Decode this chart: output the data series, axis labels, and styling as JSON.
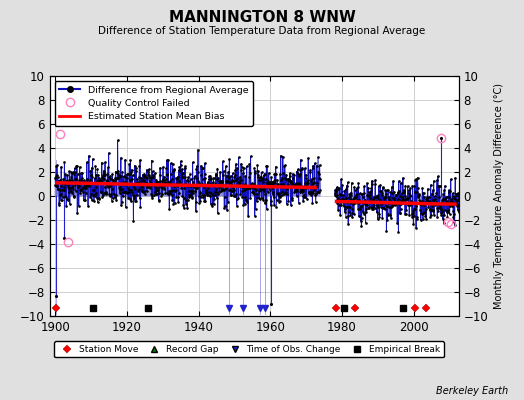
{
  "title": "MANNINGTON 8 WNW",
  "subtitle": "Difference of Station Temperature Data from Regional Average",
  "ylabel": "Monthly Temperature Anomaly Difference (°C)",
  "xlabel_years": [
    1900,
    1920,
    1940,
    1960,
    1980,
    2000
  ],
  "ylim": [
    -10,
    10
  ],
  "xlim": [
    1898.5,
    2012.5
  ],
  "bg_color": "#e0e0e0",
  "plot_bg_color": "#ffffff",
  "grid_color": "#c8c8c8",
  "seed": 42,
  "station_moves": [
    1900.3,
    1978.3,
    1983.5,
    2000.5,
    2003.5
  ],
  "record_gaps": [],
  "obs_changes": [
    1948.5,
    1952.5,
    1957.0,
    1958.5
  ],
  "empirical_breaks": [
    1910.5,
    1926.0,
    1980.5,
    1997.0
  ],
  "qc_failed_years": [
    1901.3,
    1903.5,
    2007.5,
    2009.5,
    2010.5
  ],
  "qc_failed_values": [
    5.2,
    -3.8,
    4.8,
    -2.2,
    -2.3
  ],
  "seg1_start": 1900,
  "seg1_end": 1973,
  "seg1_bias": 1.05,
  "seg1_trend": -0.003,
  "seg2_start": 1978,
  "seg2_end": 2012,
  "seg2_bias": -0.45,
  "seg2_trend": -0.004,
  "event_y": -9.3,
  "berkeley_earth_text": "Berkeley Earth",
  "spike_early_years": [
    1900.25,
    1902.5
  ],
  "spike_early_vals": [
    -8.3,
    -3.5
  ],
  "spike_gap_years": [
    1960.2
  ],
  "spike_gap_vals": [
    -9.0
  ],
  "spike_late_years": [
    2007.5
  ],
  "spike_late_vals": [
    4.8
  ]
}
